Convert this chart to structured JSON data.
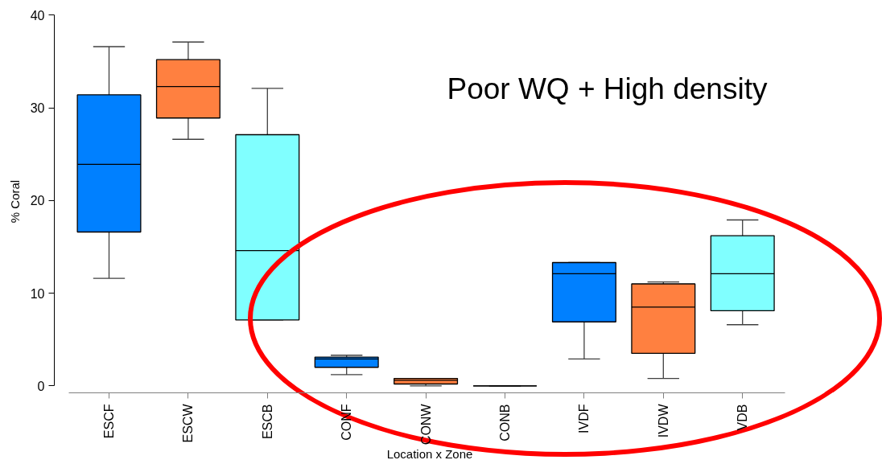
{
  "chart_data": {
    "type": "box",
    "xlabel": "Location x Zone",
    "ylabel": "% Coral",
    "annotations": [
      "Poor WQ + High density"
    ],
    "categories": [
      "ESCF",
      "ESCW",
      "ESCB",
      "CONF",
      "CONW",
      "CONB",
      "IVDF",
      "IVDW",
      "VDB"
    ],
    "colors": [
      "#0080ff",
      "#ff8040",
      "#80ffff",
      "#0080ff",
      "#ff8040",
      "#000000",
      "#0080ff",
      "#ff8040",
      "#80ffff"
    ],
    "boxes": [
      {
        "low": 11.6,
        "q1": 16.6,
        "median": 23.9,
        "q3": 31.4,
        "high": 36.6
      },
      {
        "low": 26.6,
        "q1": 28.9,
        "median": 32.3,
        "q3": 35.2,
        "high": 37.1
      },
      {
        "low": 7.1,
        "q1": 7.1,
        "median": 14.6,
        "q3": 27.1,
        "high": 32.1
      },
      {
        "low": 1.2,
        "q1": 2.0,
        "median": 2.9,
        "q3": 3.1,
        "high": 3.3
      },
      {
        "low": 0.0,
        "q1": 0.2,
        "median": 0.6,
        "q3": 0.8,
        "high": 0.8
      },
      {
        "low": 0.0,
        "q1": 0.0,
        "median": 0.0,
        "q3": 0.0,
        "high": 0.0
      },
      {
        "low": 2.9,
        "q1": 6.9,
        "median": 12.1,
        "q3": 13.3,
        "high": 13.3
      },
      {
        "low": 0.8,
        "q1": 3.5,
        "median": 8.5,
        "q3": 11.0,
        "high": 11.2
      },
      {
        "low": 6.6,
        "q1": 8.1,
        "median": 12.1,
        "q3": 16.2,
        "high": 17.9
      }
    ],
    "ylim": [
      0,
      40
    ],
    "yticks": [
      0,
      10,
      20,
      30,
      40
    ],
    "grid": false
  }
}
